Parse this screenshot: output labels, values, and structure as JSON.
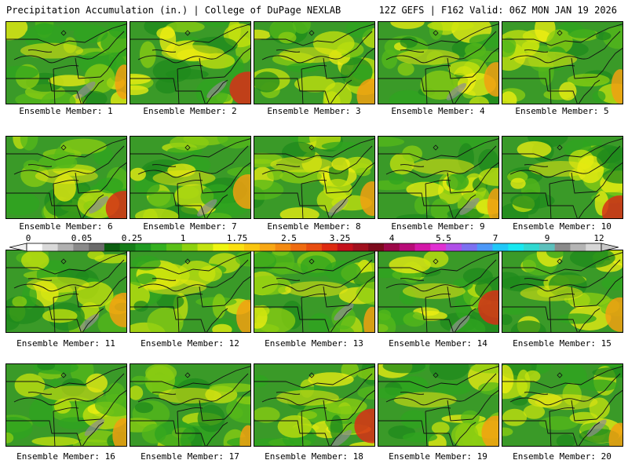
{
  "header": {
    "left_title": "Precipitation Accumulation (in.) | College of DuPage NEXLAB",
    "right_title": "12Z GEFS | F162 Valid: 06Z MON JAN 19 2026"
  },
  "scale": {
    "labels": [
      "0",
      "0.05",
      "0.25",
      "1",
      "1.75",
      "2.5",
      "3.25",
      "4",
      "5.5",
      "7",
      "9",
      "12"
    ],
    "colors": [
      "#ffffff",
      "#d9d9d9",
      "#b0b0b0",
      "#8a8a8a",
      "#6a6a6a",
      "#0b5e10",
      "#147d18",
      "#1f9a22",
      "#34b020",
      "#5ac018",
      "#8cd10e",
      "#c2e310",
      "#eef510",
      "#fbe010",
      "#fac60e",
      "#f8a814",
      "#f38a12",
      "#ef6b10",
      "#e84d10",
      "#dd2a10",
      "#c4101a",
      "#a0101e",
      "#7c0a1c",
      "#9c0848",
      "#b80c78",
      "#d418a8",
      "#e030d2",
      "#b050e8",
      "#7c70f0",
      "#4c98f8",
      "#20c8f8",
      "#18e8f0",
      "#30d8d0",
      "#5cc0bc",
      "#8a8a8a",
      "#b4b4b4",
      "#d6d6d6"
    ]
  },
  "members": [
    {
      "label": "Ensemble Member: 1"
    },
    {
      "label": "Ensemble Member: 2"
    },
    {
      "label": "Ensemble Member: 3"
    },
    {
      "label": "Ensemble Member: 4"
    },
    {
      "label": "Ensemble Member: 5"
    },
    {
      "label": "Ensemble Member: 6"
    },
    {
      "label": "Ensemble Member: 7"
    },
    {
      "label": "Ensemble Member: 8"
    },
    {
      "label": "Ensemble Member: 9"
    },
    {
      "label": "Ensemble Member: 10"
    },
    {
      "label": "Ensemble Member: 11"
    },
    {
      "label": "Ensemble Member: 12"
    },
    {
      "label": "Ensemble Member: 13"
    },
    {
      "label": "Ensemble Member: 14"
    },
    {
      "label": "Ensemble Member: 15"
    },
    {
      "label": "Ensemble Member: 16"
    },
    {
      "label": "Ensemble Member: 17"
    },
    {
      "label": "Ensemble Member: 18"
    },
    {
      "label": "Ensemble Member: 19"
    },
    {
      "label": "Ensemble Member: 20"
    }
  ]
}
